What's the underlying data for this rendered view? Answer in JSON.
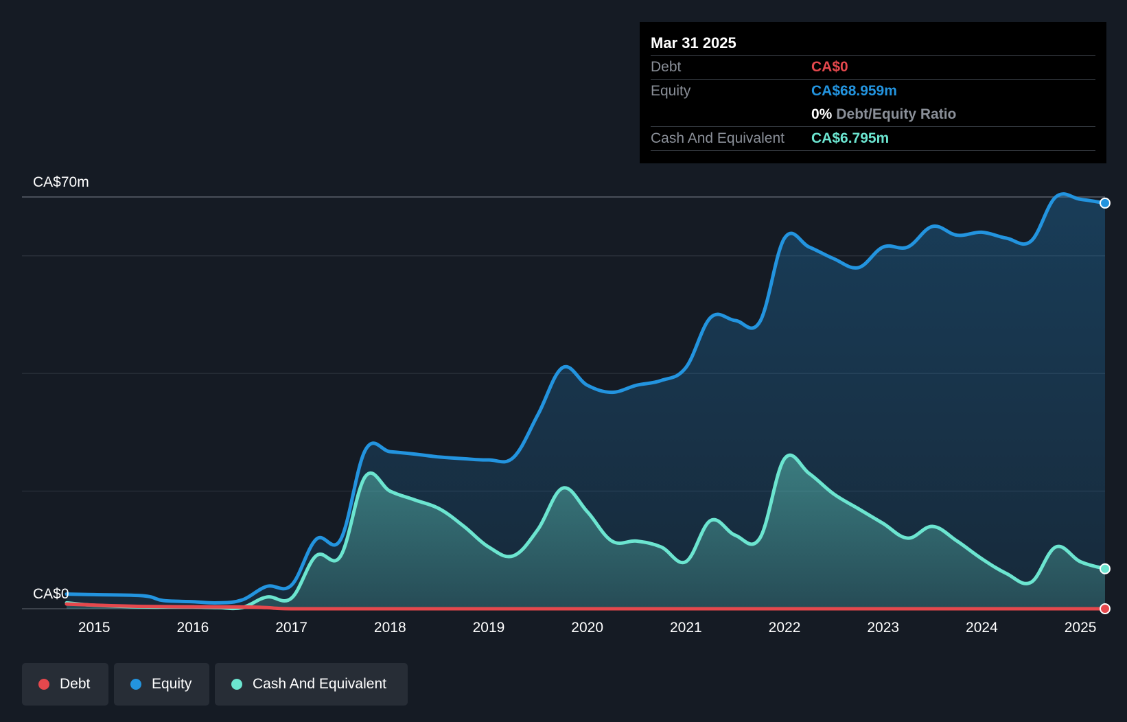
{
  "tooltip": {
    "date": "Mar 31 2025",
    "debt_label": "Debt",
    "debt_value": "CA$0",
    "equity_label": "Equity",
    "equity_value": "CA$68.959m",
    "ratio_value": "0%",
    "ratio_label": "Debt/Equity Ratio",
    "cash_label": "Cash And Equivalent",
    "cash_value": "CA$6.795m"
  },
  "legend": {
    "debt": "Debt",
    "equity": "Equity",
    "cash": "Cash And Equivalent"
  },
  "colors": {
    "debt": "#e5484d",
    "equity": "#2394df",
    "cash": "#6ce5d0",
    "background": "#151b24"
  },
  "chart_data": {
    "type": "area",
    "title": "",
    "xlabel": "",
    "ylabel": "",
    "ylim": [
      0,
      70
    ],
    "xlim": [
      2014.72,
      2025.25
    ],
    "y_tick_labels": [
      {
        "value": 70,
        "label": "CA$70m"
      },
      {
        "value": 0,
        "label": "CA$0"
      }
    ],
    "gridlines": [
      0,
      20,
      40,
      60,
      70
    ],
    "x_ticks": [
      2015,
      2016,
      2017,
      2018,
      2019,
      2020,
      2021,
      2022,
      2023,
      2024,
      2025
    ],
    "x_tick_labels": [
      "2015",
      "2016",
      "2017",
      "2018",
      "2019",
      "2020",
      "2021",
      "2022",
      "2023",
      "2024",
      "2025"
    ],
    "series": [
      {
        "name": "Debt",
        "key": "debt",
        "x": [
          2014.72,
          2015.5,
          2016.5,
          2016.75,
          2017.0,
          2018.0,
          2019.0,
          2020.0,
          2021.0,
          2022.0,
          2023.0,
          2024.0,
          2025.25
        ],
        "values": [
          0.8,
          0.4,
          0.3,
          0.2,
          0,
          0,
          0,
          0,
          0,
          0,
          0,
          0,
          0
        ]
      },
      {
        "name": "Equity",
        "key": "equity",
        "x": [
          2014.72,
          2015.0,
          2015.5,
          2015.7,
          2016.0,
          2016.25,
          2016.5,
          2016.75,
          2017.0,
          2017.25,
          2017.5,
          2017.75,
          2018.0,
          2018.25,
          2018.5,
          2018.75,
          2019.0,
          2019.25,
          2019.5,
          2019.75,
          2020.0,
          2020.25,
          2020.5,
          2020.75,
          2021.0,
          2021.25,
          2021.5,
          2021.75,
          2022.0,
          2022.25,
          2022.5,
          2022.75,
          2023.0,
          2023.25,
          2023.5,
          2023.75,
          2024.0,
          2024.25,
          2024.5,
          2024.75,
          2025.0,
          2025.25
        ],
        "values": [
          2.5,
          2.4,
          2.2,
          1.4,
          1.2,
          1.0,
          1.5,
          3.8,
          4.0,
          11.8,
          11.8,
          27.0,
          26.7,
          26.3,
          25.8,
          25.5,
          25.3,
          25.7,
          33.0,
          41.0,
          38.0,
          36.8,
          38.0,
          38.8,
          41.0,
          49.5,
          49.0,
          48.8,
          63.0,
          61.5,
          59.5,
          58.0,
          61.5,
          61.5,
          65.0,
          63.5,
          64.0,
          63.0,
          62.5,
          70.0,
          69.6,
          68.959
        ]
      },
      {
        "name": "Cash And Equivalent",
        "key": "cash",
        "x": [
          2014.72,
          2015.0,
          2015.5,
          2015.75,
          2016.0,
          2016.25,
          2016.5,
          2016.75,
          2017.0,
          2017.25,
          2017.5,
          2017.75,
          2018.0,
          2018.25,
          2018.5,
          2018.75,
          2019.0,
          2019.25,
          2019.5,
          2019.75,
          2020.0,
          2020.25,
          2020.5,
          2020.75,
          2021.0,
          2021.25,
          2021.5,
          2021.75,
          2022.0,
          2022.25,
          2022.5,
          2022.75,
          2023.0,
          2023.25,
          2023.5,
          2023.75,
          2024.0,
          2024.25,
          2024.5,
          2024.75,
          2025.0,
          2025.25
        ],
        "values": [
          1.0,
          0.6,
          0.3,
          0.3,
          0.3,
          0.2,
          0.2,
          2.0,
          1.8,
          9.0,
          9.0,
          22.5,
          20.0,
          18.5,
          17.0,
          14.0,
          10.5,
          9.0,
          13.5,
          20.5,
          16.5,
          11.5,
          11.5,
          10.5,
          8.0,
          15.0,
          12.5,
          12.0,
          25.5,
          23.0,
          19.5,
          17.0,
          14.5,
          12.0,
          14.0,
          11.5,
          8.5,
          6.0,
          4.5,
          10.5,
          8.0,
          6.795
        ]
      }
    ]
  }
}
